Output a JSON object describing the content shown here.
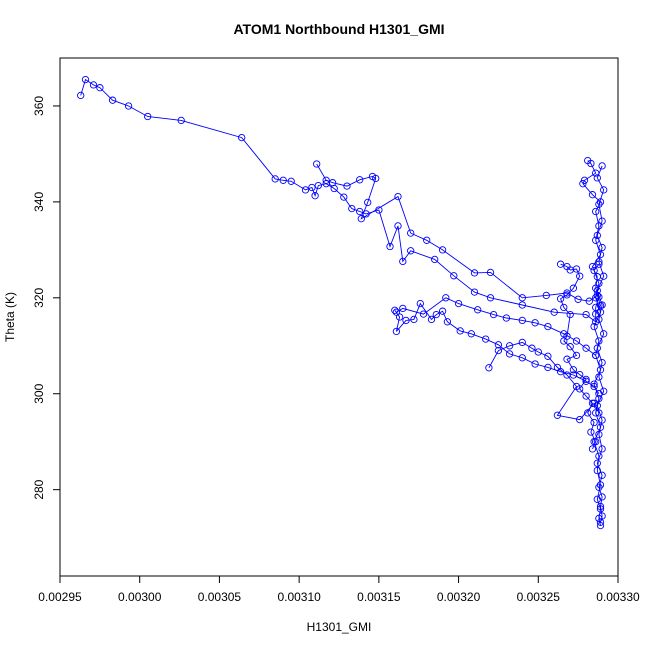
{
  "chart_data": {
    "type": "scatter",
    "title": "ATOM1 Northbound H1301_GMI",
    "xlabel": "H1301_GMI",
    "ylabel": "Theta (K)",
    "xlim": [
      0.00295,
      0.0033
    ],
    "ylim": [
      262,
      370
    ],
    "x_ticks": [
      0.00295,
      0.003,
      0.00305,
      0.0031,
      0.00315,
      0.0032,
      0.00325,
      0.0033
    ],
    "x_tick_labels": [
      "0.00295",
      "0.00300",
      "0.00305",
      "0.00310",
      "0.00315",
      "0.00320",
      "0.00325",
      "0.00330"
    ],
    "y_ticks": [
      280,
      300,
      320,
      340,
      360
    ],
    "y_tick_labels": [
      "280",
      "300",
      "320",
      "340",
      "360"
    ],
    "grid": false,
    "series": [
      {
        "color": "#0000ff",
        "marker": "open-circle",
        "connect_lines": true,
        "points": [
          [
            0.002963,
            362.2
          ],
          [
            0.002966,
            365.5
          ],
          [
            0.002971,
            364.4
          ],
          [
            0.002975,
            363.8
          ],
          [
            0.002983,
            361.2
          ],
          [
            0.002993,
            360.0
          ],
          [
            0.003005,
            357.8
          ],
          [
            0.003026,
            357.0
          ],
          [
            0.003064,
            353.4
          ],
          [
            0.003085,
            344.8
          ],
          [
            0.00309,
            344.5
          ],
          [
            0.003095,
            344.3
          ],
          [
            0.003104,
            342.5
          ],
          [
            0.003108,
            343.0
          ],
          [
            0.00311,
            341.3
          ],
          [
            0.003112,
            343.4
          ],
          [
            0.003117,
            343.8
          ],
          [
            0.003122,
            342.8
          ],
          [
            0.003128,
            341.0
          ],
          [
            0.003133,
            338.6
          ],
          [
            0.003138,
            338.0
          ],
          [
            0.003142,
            337.5
          ],
          [
            0.00315,
            338.3
          ],
          [
            0.003157,
            330.7
          ],
          [
            0.003162,
            335.0
          ],
          [
            0.003165,
            327.6
          ],
          [
            0.00317,
            329.8
          ],
          [
            0.003185,
            328.0
          ],
          [
            0.003197,
            324.6
          ],
          [
            0.00321,
            321.2
          ],
          [
            0.00322,
            320.0
          ],
          [
            0.00324,
            318.5
          ],
          [
            0.00326,
            317.0
          ],
          [
            0.00328,
            316.5
          ],
          [
            0.003286,
            315.0
          ],
          [
            0.003286,
            318.0
          ],
          [
            0.003288,
            320.2
          ],
          [
            0.003286,
            322.0
          ],
          [
            0.003287,
            324.4
          ],
          [
            0.003285,
            325.7
          ],
          [
            0.003288,
            327.0
          ]
        ]
      },
      {
        "color": "#0000ff",
        "marker": "open-circle",
        "connect_lines": true,
        "points": [
          [
            0.003111,
            347.9
          ],
          [
            0.003117,
            344.5
          ],
          [
            0.003121,
            344.0
          ],
          [
            0.00313,
            343.3
          ],
          [
            0.003138,
            344.6
          ],
          [
            0.003146,
            345.3
          ],
          [
            0.003148,
            344.9
          ],
          [
            0.003143,
            339.9
          ],
          [
            0.003139,
            336.5
          ],
          [
            0.003162,
            341.1
          ],
          [
            0.00317,
            333.5
          ],
          [
            0.00318,
            332.0
          ],
          [
            0.00319,
            330.0
          ],
          [
            0.00321,
            325.2
          ],
          [
            0.00322,
            325.3
          ],
          [
            0.00324,
            320.0
          ],
          [
            0.003255,
            320.5
          ],
          [
            0.003268,
            321.0
          ],
          [
            0.003275,
            319.7
          ],
          [
            0.003282,
            319.3
          ],
          [
            0.003287,
            320.5
          ],
          [
            0.003289,
            318.4
          ],
          [
            0.003286,
            316.6
          ]
        ]
      },
      {
        "color": "#0000ff",
        "marker": "open-circle",
        "connect_lines": true,
        "points": [
          [
            0.00316,
            317.4
          ],
          [
            0.003163,
            316.0
          ],
          [
            0.003161,
            313.0
          ],
          [
            0.003167,
            315.3
          ],
          [
            0.003172,
            315.5
          ],
          [
            0.003176,
            318.8
          ],
          [
            0.003183,
            315.5
          ],
          [
            0.003186,
            316.5
          ],
          [
            0.00319,
            317.2
          ],
          [
            0.003193,
            315.0
          ],
          [
            0.003201,
            313.1
          ],
          [
            0.003208,
            312.5
          ],
          [
            0.003217,
            311.4
          ],
          [
            0.003225,
            310.2
          ],
          [
            0.003232,
            308.3
          ],
          [
            0.00324,
            307.5
          ],
          [
            0.003248,
            306.2
          ],
          [
            0.003256,
            305.5
          ],
          [
            0.003264,
            304.6
          ],
          [
            0.003272,
            303.9
          ],
          [
            0.00328,
            302.6
          ],
          [
            0.003285,
            301.5
          ],
          [
            0.003288,
            300.0
          ]
        ]
      },
      {
        "color": "#0000ff",
        "marker": "open-circle",
        "connect_lines": true,
        "points": [
          [
            0.003161,
            317.0
          ],
          [
            0.003165,
            317.8
          ],
          [
            0.003178,
            316.6
          ],
          [
            0.003192,
            320.0
          ],
          [
            0.0032,
            318.8
          ],
          [
            0.003212,
            317.5
          ],
          [
            0.003222,
            316.5
          ],
          [
            0.00323,
            315.8
          ],
          [
            0.00324,
            315.3
          ],
          [
            0.003248,
            314.8
          ],
          [
            0.003256,
            314.0
          ],
          [
            0.003266,
            312.5
          ],
          [
            0.003274,
            311.0
          ],
          [
            0.00328,
            309.5
          ],
          [
            0.003286,
            308.0
          ]
        ]
      },
      {
        "color": "#0000ff",
        "marker": "open-circle",
        "connect_lines": true,
        "points": [
          [
            0.003219,
            305.4
          ],
          [
            0.003225,
            309.0
          ],
          [
            0.003232,
            310.0
          ],
          [
            0.00324,
            310.7
          ],
          [
            0.003246,
            309.5
          ],
          [
            0.00325,
            308.7
          ],
          [
            0.003256,
            307.8
          ],
          [
            0.003262,
            305.5
          ],
          [
            0.003268,
            303.9
          ],
          [
            0.003274,
            301.5
          ],
          [
            0.003262,
            295.5
          ],
          [
            0.003276,
            294.6
          ],
          [
            0.003285,
            298.0
          ],
          [
            0.003288,
            296.0
          ]
        ]
      },
      {
        "color": "#0000ff",
        "marker": "open-circle",
        "connect_lines": true,
        "points": [
          [
            0.003281,
            348.6
          ],
          [
            0.003283,
            348.0
          ],
          [
            0.003286,
            346.0
          ],
          [
            0.003279,
            344.5
          ],
          [
            0.003278,
            343.8
          ],
          [
            0.003284,
            341.5
          ],
          [
            0.003289,
            340.0
          ],
          [
            0.003286,
            338.0
          ],
          [
            0.003288,
            335.0
          ],
          [
            0.003286,
            332.0
          ],
          [
            0.003289,
            329.0
          ],
          [
            0.003284,
            326.5
          ],
          [
            0.003288,
            323.0
          ],
          [
            0.003286,
            320.0
          ],
          [
            0.003289,
            317.0
          ],
          [
            0.003285,
            314.0
          ],
          [
            0.003288,
            311.0
          ],
          [
            0.003286,
            308.0
          ],
          [
            0.003289,
            305.0
          ],
          [
            0.003285,
            302.0
          ],
          [
            0.003288,
            299.0
          ],
          [
            0.003286,
            296.0
          ],
          [
            0.003289,
            293.0
          ],
          [
            0.003285,
            290.0
          ],
          [
            0.003288,
            287.0
          ],
          [
            0.003287,
            284.0
          ],
          [
            0.003289,
            281.0
          ],
          [
            0.003287,
            278.0
          ],
          [
            0.003289,
            276.0
          ],
          [
            0.003288,
            274.0
          ],
          [
            0.003289,
            272.5
          ]
        ]
      },
      {
        "color": "#0000ff",
        "marker": "open-circle",
        "connect_lines": true,
        "points": [
          [
            0.00329,
            347.5
          ],
          [
            0.003287,
            345.0
          ],
          [
            0.003291,
            342.5
          ],
          [
            0.003288,
            339.5
          ],
          [
            0.00329,
            336.0
          ],
          [
            0.003287,
            333.0
          ],
          [
            0.00329,
            330.5
          ],
          [
            0.003288,
            327.5
          ],
          [
            0.003291,
            324.5
          ],
          [
            0.003287,
            321.5
          ],
          [
            0.00329,
            318.5
          ],
          [
            0.003288,
            315.5
          ],
          [
            0.003291,
            312.5
          ],
          [
            0.003287,
            309.5
          ],
          [
            0.00329,
            306.5
          ],
          [
            0.003288,
            303.5
          ],
          [
            0.003291,
            300.5
          ],
          [
            0.003287,
            297.5
          ],
          [
            0.00329,
            294.5
          ],
          [
            0.003288,
            291.5
          ],
          [
            0.00329,
            288.5
          ],
          [
            0.003287,
            285.5
          ],
          [
            0.00329,
            283.0
          ],
          [
            0.003288,
            280.5
          ],
          [
            0.00329,
            278.5
          ],
          [
            0.003289,
            276.5
          ],
          [
            0.00329,
            274.5
          ],
          [
            0.003289,
            273.2
          ]
        ]
      },
      {
        "color": "#0000ff",
        "marker": "open-circle",
        "connect_lines": true,
        "points": [
          [
            0.003264,
            327.0
          ],
          [
            0.003268,
            326.5
          ],
          [
            0.00327,
            325.8
          ],
          [
            0.003274,
            326.0
          ],
          [
            0.003276,
            324.5
          ],
          [
            0.003272,
            322.0
          ],
          [
            0.003268,
            320.6
          ],
          [
            0.003264,
            319.8
          ],
          [
            0.003266,
            318.0
          ],
          [
            0.00327,
            316.5
          ],
          [
            0.003268,
            312.0
          ],
          [
            0.003266,
            311.0
          ],
          [
            0.00327,
            309.8
          ],
          [
            0.003274,
            308.0
          ],
          [
            0.003268,
            307.2
          ],
          [
            0.003272,
            305.0
          ],
          [
            0.003276,
            304.0
          ],
          [
            0.00328,
            303.0
          ],
          [
            0.003276,
            301.0
          ],
          [
            0.00328,
            299.5
          ],
          [
            0.003284,
            298.0
          ],
          [
            0.003281,
            296.0
          ],
          [
            0.003285,
            294.0
          ],
          [
            0.003283,
            292.0
          ],
          [
            0.003286,
            290.0
          ],
          [
            0.003284,
            288.5
          ]
        ]
      }
    ]
  }
}
